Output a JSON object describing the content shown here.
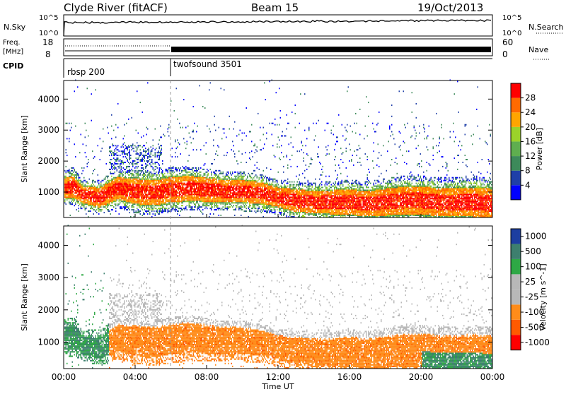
{
  "header": {
    "station": "Clyde River (fitACF)",
    "beam": "Beam 15",
    "date": "19/Oct/2013"
  },
  "noise_panel": {
    "left_label": "N.Sky",
    "right_label": "N.Search",
    "left_ticks": [
      "10^5",
      "10^0"
    ],
    "right_ticks": [
      "10^5",
      "10^0"
    ]
  },
  "freq_panel": {
    "left_label_line1": "Freq.",
    "left_label_line2": "[MHz]",
    "left_ticks": [
      "18",
      "8"
    ],
    "right_label": "Nave",
    "right_ticks": [
      "60",
      "0"
    ]
  },
  "cpid_panel": {
    "label": "CPID",
    "programs": [
      {
        "name": "rbsp 200",
        "start_hour": 0
      },
      {
        "name": "twofsound 3501",
        "start_hour": 6
      }
    ]
  },
  "time_axis": {
    "label": "Time UT",
    "ticks": [
      "00:00",
      "04:00",
      "08:00",
      "12:00",
      "16:00",
      "20:00",
      "00:00"
    ]
  },
  "colors": {
    "power": [
      "#0000ff",
      "#1f3fa8",
      "#3d8a5a",
      "#5fae4f",
      "#9bd22a",
      "#ffa500",
      "#ff6a00",
      "#ff0000"
    ],
    "velocity": [
      "#ff0000",
      "#ff5a00",
      "#ff8c1a",
      "#b8b8b8",
      "#b8b8b8",
      "#2ea845",
      "#3d7f6e",
      "#1d3ea0"
    ]
  },
  "chart_data": [
    {
      "type": "heatmap",
      "panel": "power",
      "ylabel": "Slant Range [km]",
      "y_ticks": [
        1000,
        2000,
        3000,
        4000
      ],
      "ylim": [
        180,
        4600
      ],
      "xlim_hours": [
        0,
        24
      ],
      "colorbar": {
        "label": "Power [dB]",
        "ticks": [
          "4",
          "8",
          "12",
          "16",
          "20",
          "24",
          "28"
        ],
        "range": [
          0,
          30
        ]
      },
      "profile": {
        "hours": [
          0,
          0.5,
          1,
          2,
          3,
          4,
          5,
          6,
          7,
          8,
          9,
          10,
          11,
          12,
          13,
          14,
          15,
          16,
          17,
          18,
          19,
          20,
          21,
          22,
          23,
          24
        ],
        "center": [
          1100,
          1150,
          900,
          800,
          1100,
          1000,
          950,
          1050,
          1100,
          1050,
          1000,
          1000,
          950,
          800,
          700,
          650,
          650,
          650,
          600,
          650,
          700,
          700,
          650,
          650,
          650,
          600
        ],
        "width": [
          700,
          800,
          600,
          700,
          800,
          900,
          900,
          900,
          900,
          850,
          800,
          800,
          750,
          700,
          800,
          800,
          850,
          900,
          900,
          950,
          1000,
          1000,
          1000,
          1000,
          1050,
          1050
        ]
      }
    },
    {
      "type": "heatmap",
      "panel": "velocity",
      "ylabel": "Slant Range [km]",
      "y_ticks": [
        1000,
        2000,
        3000,
        4000
      ],
      "ylim": [
        180,
        4600
      ],
      "xlim_hours": [
        0,
        24
      ],
      "colorbar": {
        "label": "Velocity [m s^-1]",
        "ticks": [
          "-1000",
          "-500",
          "-100",
          "-25",
          "25",
          "100",
          "500",
          "1000"
        ],
        "range": [
          -1200,
          1200
        ]
      },
      "profile": {
        "hours": [
          0,
          0.5,
          1,
          2,
          3,
          4,
          5,
          6,
          7,
          8,
          9,
          10,
          11,
          12,
          13,
          14,
          15,
          16,
          17,
          18,
          19,
          20,
          21,
          22,
          23,
          24
        ],
        "center": [
          1100,
          1150,
          900,
          800,
          1100,
          1000,
          950,
          1050,
          1100,
          1050,
          1000,
          1000,
          950,
          800,
          700,
          650,
          650,
          650,
          600,
          650,
          700,
          700,
          650,
          650,
          650,
          600
        ],
        "width": [
          700,
          800,
          600,
          700,
          800,
          900,
          900,
          900,
          900,
          850,
          800,
          800,
          750,
          700,
          800,
          800,
          850,
          900,
          900,
          950,
          1000,
          1000,
          1000,
          1000,
          1050,
          1050
        ]
      }
    }
  ]
}
